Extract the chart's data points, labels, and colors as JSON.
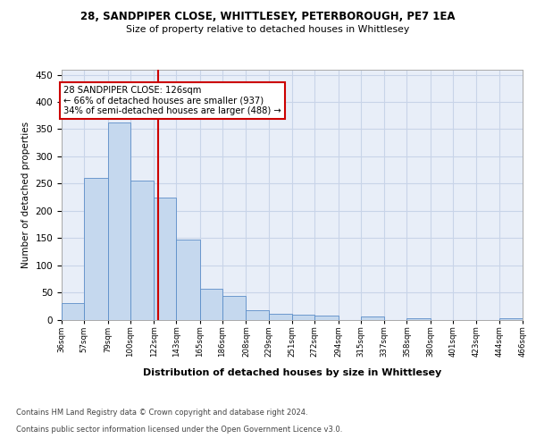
{
  "title_line1": "28, SANDPIPER CLOSE, WHITTLESEY, PETERBOROUGH, PE7 1EA",
  "title_line2": "Size of property relative to detached houses in Whittlesey",
  "xlabel": "Distribution of detached houses by size in Whittlesey",
  "ylabel": "Number of detached properties",
  "footer_line1": "Contains HM Land Registry data © Crown copyright and database right 2024.",
  "footer_line2": "Contains public sector information licensed under the Open Government Licence v3.0.",
  "bar_edges": [
    36,
    57,
    79,
    100,
    122,
    143,
    165,
    186,
    208,
    229,
    251,
    272,
    294,
    315,
    337,
    358,
    380,
    401,
    423,
    444,
    466
  ],
  "bar_heights": [
    30,
    260,
    363,
    256,
    224,
    147,
    57,
    44,
    17,
    11,
    9,
    8,
    0,
    5,
    0,
    2,
    0,
    0,
    0,
    3
  ],
  "bar_color": "#c5d8ee",
  "bar_edge_color": "#5b8dc8",
  "grid_color": "#c8d4e8",
  "background_color": "#e8eef8",
  "vline_x": 126,
  "vline_color": "#cc0000",
  "annotation_text": "28 SANDPIPER CLOSE: 126sqm\n← 66% of detached houses are smaller (937)\n34% of semi-detached houses are larger (488) →",
  "annotation_box_color": "#ffffff",
  "annotation_box_edge_color": "#cc0000",
  "ylim": [
    0,
    460
  ],
  "yticks": [
    0,
    50,
    100,
    150,
    200,
    250,
    300,
    350,
    400,
    450
  ]
}
